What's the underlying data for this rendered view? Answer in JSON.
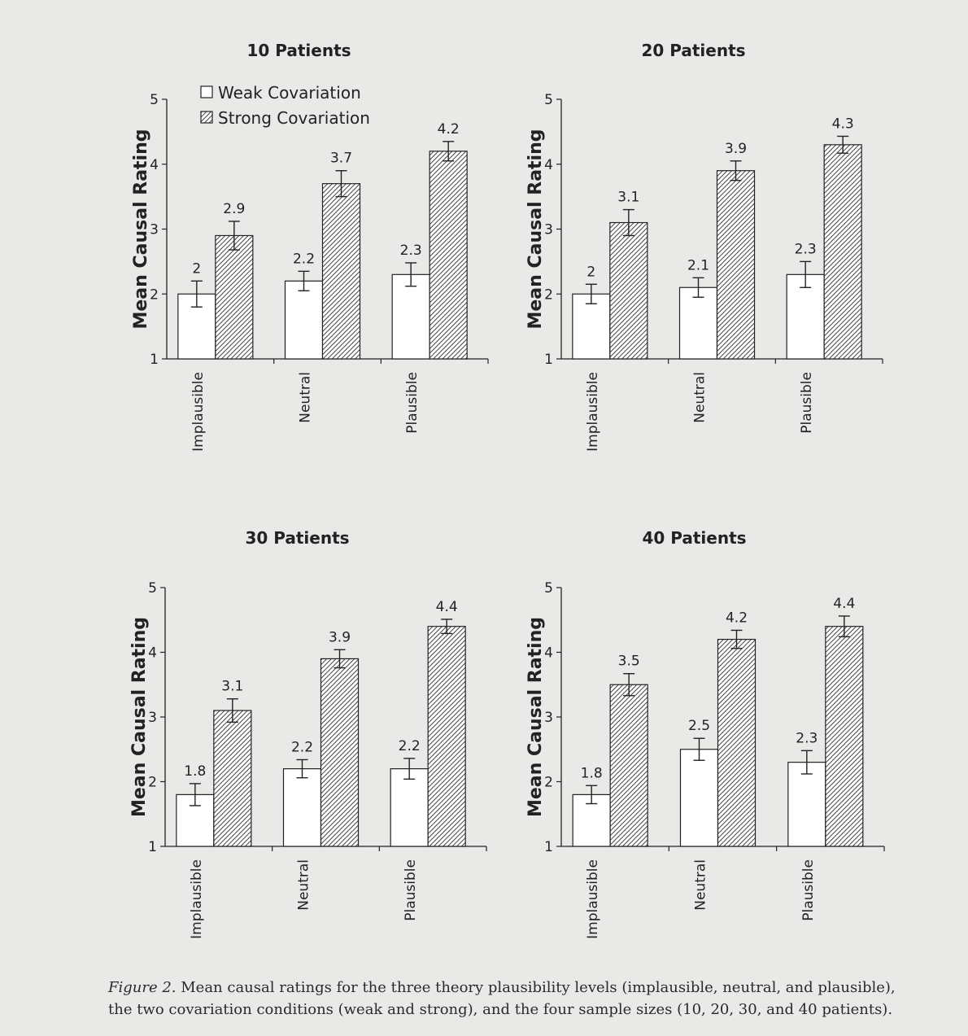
{
  "legend": {
    "weak": "Weak Covariation",
    "strong": "Strong Covariation"
  },
  "chart_data": [
    {
      "type": "bar",
      "title": "10 Patients",
      "ylabel": "Mean Causal Rating",
      "ylim": [
        1,
        5
      ],
      "yticks": [
        "1",
        "2",
        "3",
        "4",
        "5"
      ],
      "categories": [
        "Implausible",
        "Neutral",
        "Plausible"
      ],
      "series": [
        {
          "name": "Weak Covariation",
          "values": [
            2,
            2.2,
            2.3
          ],
          "labels": [
            "2",
            "2.2",
            "2.3"
          ],
          "errors": [
            0.2,
            0.15,
            0.18
          ]
        },
        {
          "name": "Strong Covariation",
          "values": [
            2.9,
            3.7,
            4.2
          ],
          "labels": [
            "2.9",
            "3.7",
            "4.2"
          ],
          "errors": [
            0.22,
            0.2,
            0.15
          ]
        }
      ]
    },
    {
      "type": "bar",
      "title": "20 Patients",
      "ylabel": "Mean Causal Rating",
      "ylim": [
        1,
        5
      ],
      "yticks": [
        "1",
        "2",
        "3",
        "4",
        "5"
      ],
      "categories": [
        "Implausible",
        "Neutral",
        "Plausible"
      ],
      "series": [
        {
          "name": "Weak Covariation",
          "values": [
            2,
            2.1,
            2.3
          ],
          "labels": [
            "2",
            "2.1",
            "2.3"
          ],
          "errors": [
            0.15,
            0.15,
            0.2
          ]
        },
        {
          "name": "Strong Covariation",
          "values": [
            3.1,
            3.9,
            4.3
          ],
          "labels": [
            "3.1",
            "3.9",
            "4.3"
          ],
          "errors": [
            0.2,
            0.15,
            0.13
          ]
        }
      ]
    },
    {
      "type": "bar",
      "title": "30 Patients",
      "ylabel": "Mean Causal Rating",
      "ylim": [
        1,
        5
      ],
      "yticks": [
        "1",
        "2",
        "3",
        "4",
        "5"
      ],
      "categories": [
        "Implausible",
        "Neutral",
        "Plausible"
      ],
      "series": [
        {
          "name": "Weak Covariation",
          "values": [
            1.8,
            2.2,
            2.2
          ],
          "labels": [
            "1.8",
            "2.2",
            "2.2"
          ],
          "errors": [
            0.17,
            0.14,
            0.16
          ]
        },
        {
          "name": "Strong Covariation",
          "values": [
            3.1,
            3.9,
            4.4
          ],
          "labels": [
            "3.1",
            "3.9",
            "4.4"
          ],
          "errors": [
            0.18,
            0.14,
            0.11
          ]
        }
      ]
    },
    {
      "type": "bar",
      "title": "40 Patients",
      "ylabel": "Mean Causal Rating",
      "ylim": [
        1,
        5
      ],
      "yticks": [
        "1",
        "2",
        "3",
        "4",
        "5"
      ],
      "categories": [
        "Implausible",
        "Neutral",
        "Plausible"
      ],
      "series": [
        {
          "name": "Weak Covariation",
          "values": [
            1.8,
            2.5,
            2.3
          ],
          "labels": [
            "1.8",
            "2.5",
            "2.3"
          ],
          "errors": [
            0.14,
            0.17,
            0.18
          ]
        },
        {
          "name": "Strong Covariation",
          "values": [
            3.5,
            4.2,
            4.4
          ],
          "labels": [
            "3.5",
            "4.2",
            "4.4"
          ],
          "errors": [
            0.17,
            0.14,
            0.16
          ]
        }
      ]
    }
  ],
  "caption": {
    "label": "Figure 2.",
    "text": " Mean causal ratings for the three theory plausibility levels (implausible, neutral, and plausible), the two covariation conditions (weak and strong), and the four sample sizes (10, 20, 30, and 40 patients)."
  }
}
